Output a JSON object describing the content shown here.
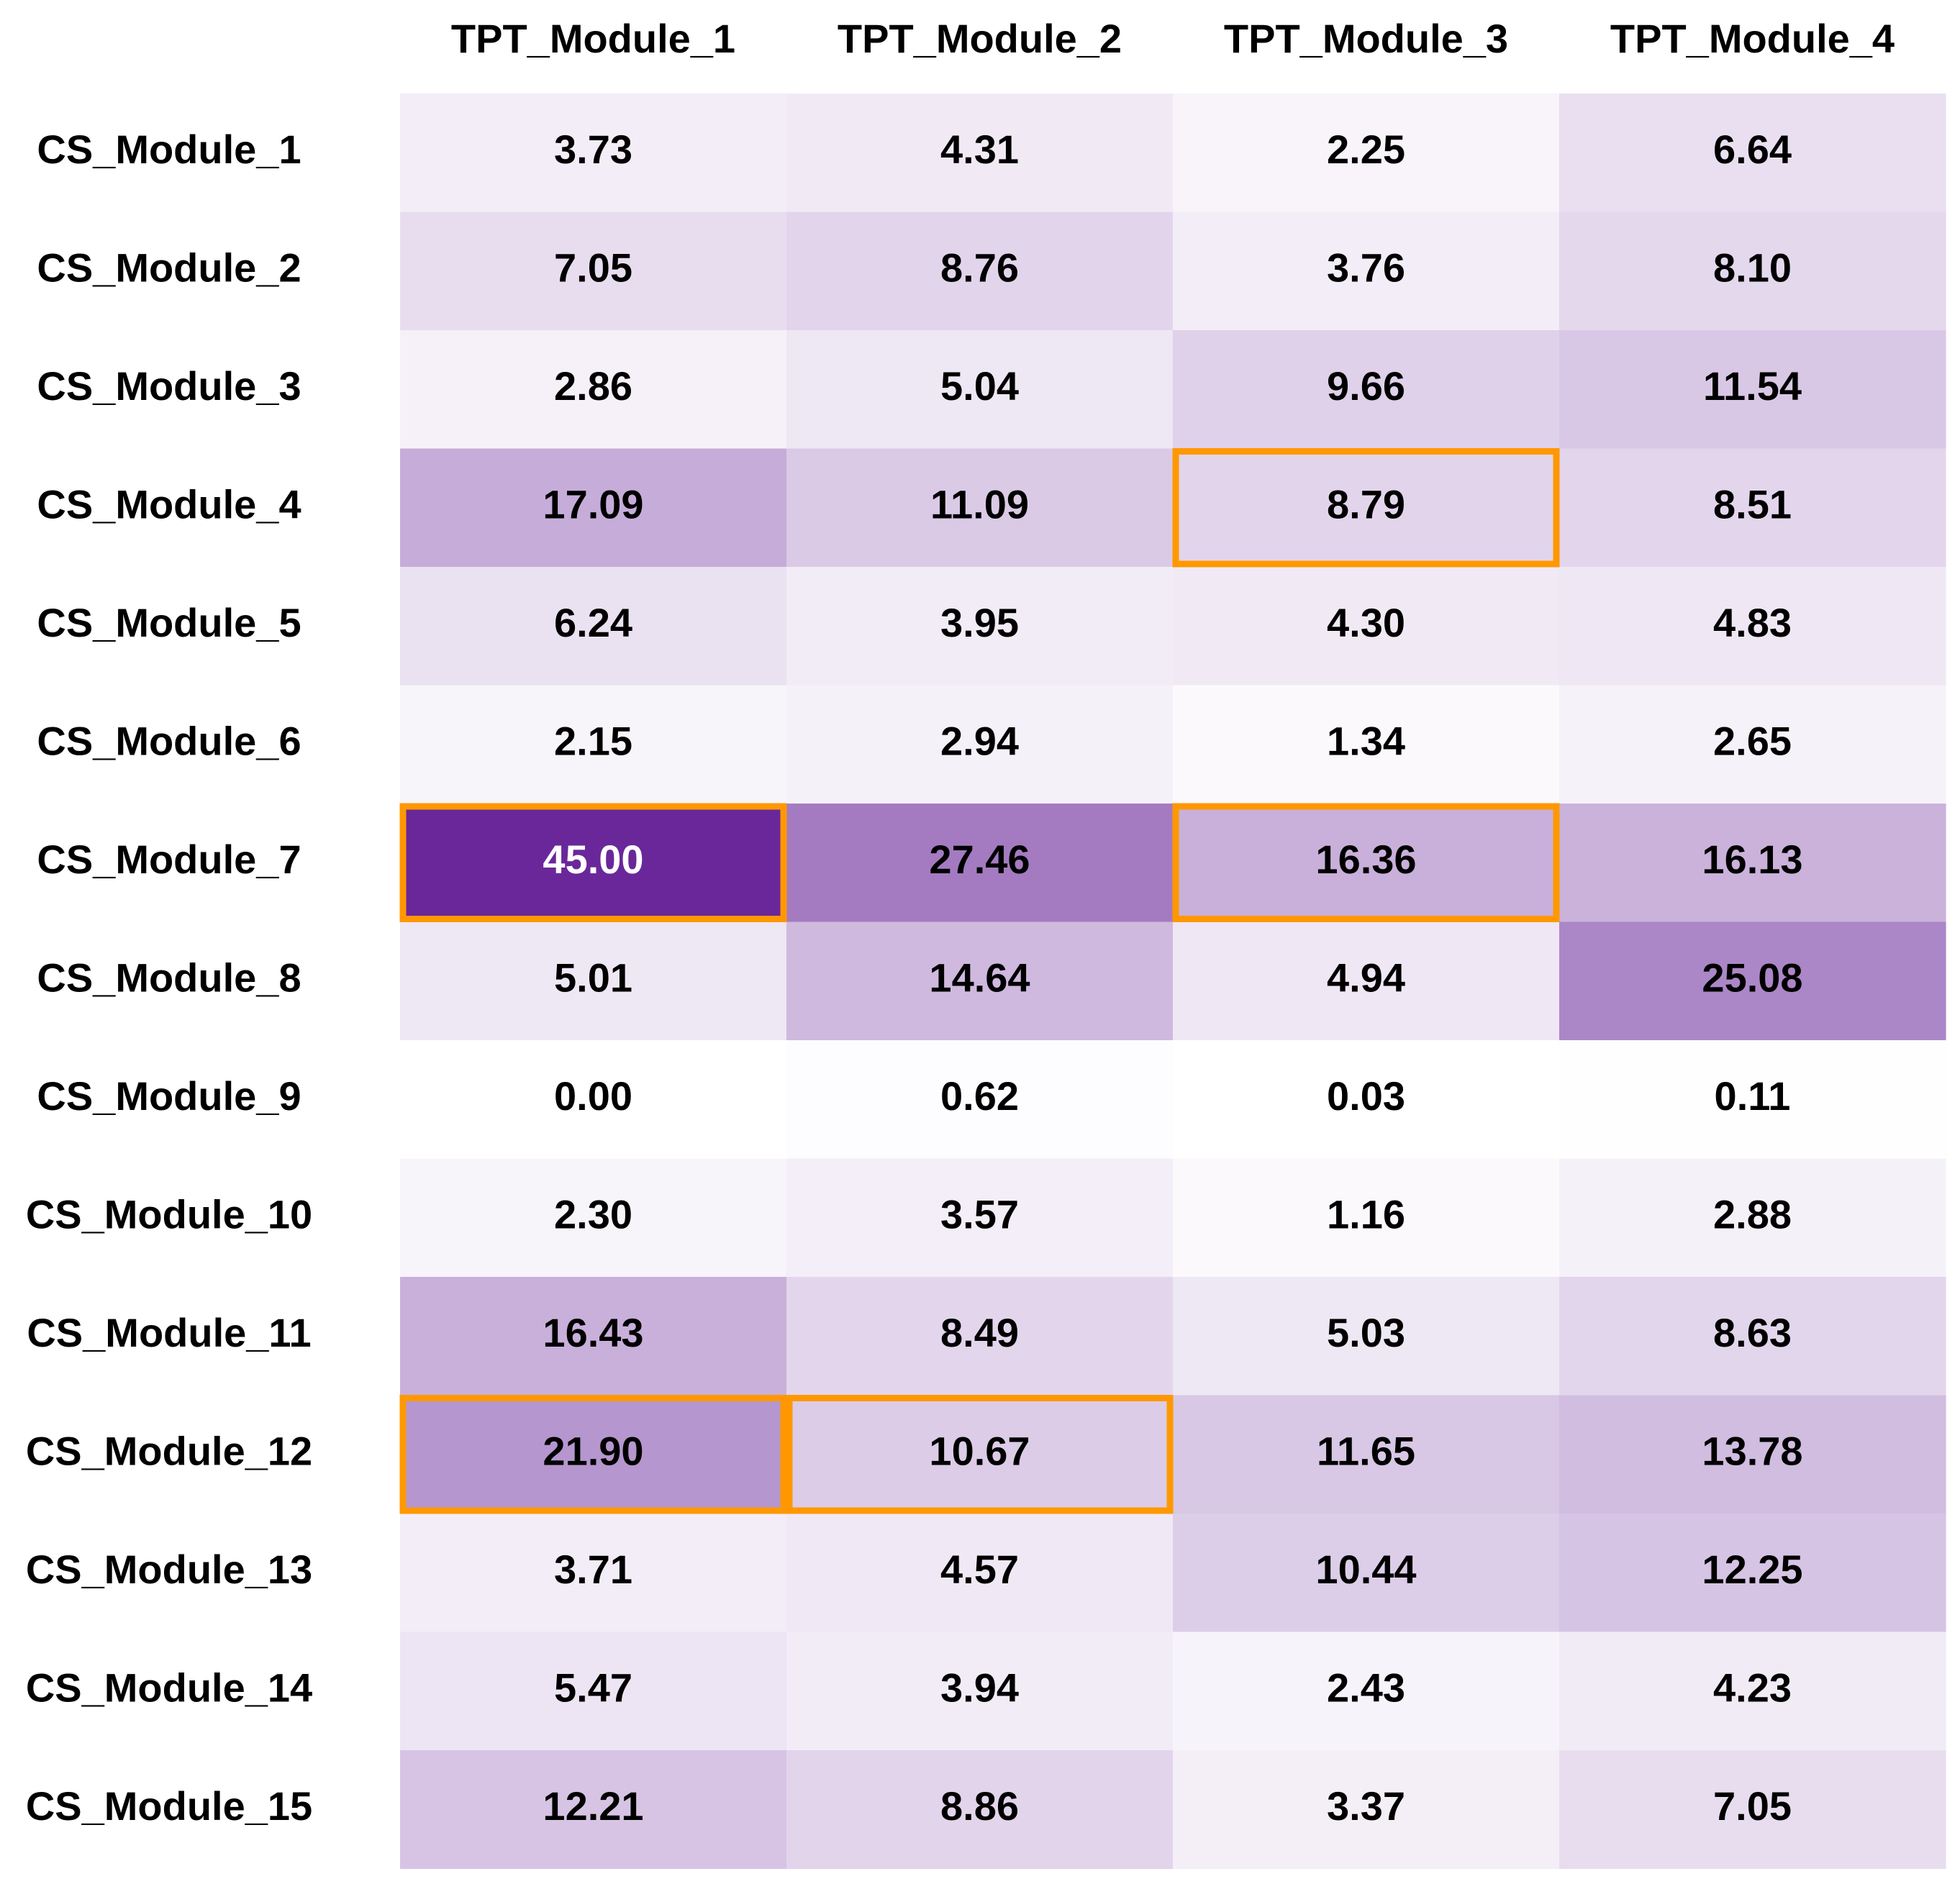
{
  "chart_data": {
    "type": "heatmap",
    "columns": [
      "TPT_Module_1",
      "TPT_Module_2",
      "TPT_Module_3",
      "TPT_Module_4"
    ],
    "rows": [
      "CS_Module_1",
      "CS_Module_2",
      "CS_Module_3",
      "CS_Module_4",
      "CS_Module_5",
      "CS_Module_6",
      "CS_Module_7",
      "CS_Module_8",
      "CS_Module_9",
      "CS_Module_10",
      "CS_Module_11",
      "CS_Module_12",
      "CS_Module_13",
      "CS_Module_14",
      "CS_Module_15"
    ],
    "values": [
      [
        3.73,
        4.31,
        2.25,
        6.64
      ],
      [
        7.05,
        8.76,
        3.76,
        8.1
      ],
      [
        2.86,
        5.04,
        9.66,
        11.54
      ],
      [
        17.09,
        11.09,
        8.79,
        8.51
      ],
      [
        6.24,
        3.95,
        4.3,
        4.83
      ],
      [
        2.15,
        2.94,
        1.34,
        2.65
      ],
      [
        45.0,
        27.46,
        16.36,
        16.13
      ],
      [
        5.01,
        14.64,
        4.94,
        25.08
      ],
      [
        0.0,
        0.62,
        0.03,
        0.11
      ],
      [
        2.3,
        3.57,
        1.16,
        2.88
      ],
      [
        16.43,
        8.49,
        5.03,
        8.63
      ],
      [
        21.9,
        10.67,
        11.65,
        13.78
      ],
      [
        3.71,
        4.57,
        10.44,
        12.25
      ],
      [
        5.47,
        3.94,
        2.43,
        4.23
      ],
      [
        12.21,
        8.86,
        3.37,
        7.05
      ]
    ],
    "value_range": [
      0,
      45
    ],
    "colormap": {
      "low": "#ffffff",
      "high": "#6a279a"
    },
    "text_color_dark": "#000000",
    "text_color_light": "#ffffff",
    "highlight_color": "#ff9800",
    "highlighted_cells": [
      {
        "row": "CS_Module_4",
        "column": "TPT_Module_3"
      },
      {
        "row": "CS_Module_7",
        "column": "TPT_Module_1"
      },
      {
        "row": "CS_Module_7",
        "column": "TPT_Module_3"
      },
      {
        "row": "CS_Module_12",
        "column": "TPT_Module_1"
      },
      {
        "row": "CS_Module_12",
        "column": "TPT_Module_2"
      }
    ],
    "grid": false,
    "legend": "none"
  }
}
